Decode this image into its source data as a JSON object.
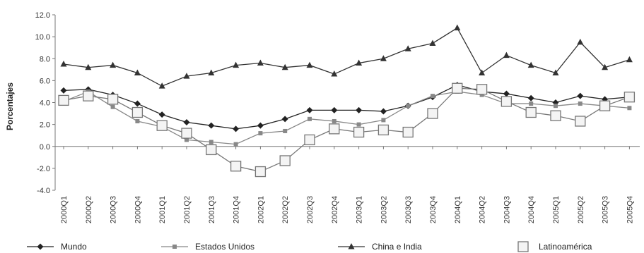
{
  "chart_data": {
    "type": "line",
    "ylabel": "Porcentajes",
    "ylim": [
      -4.0,
      12.0
    ],
    "yticks": [
      "12.0",
      "10.0",
      "8.0",
      "6.0",
      "4.0",
      "2.0",
      "0.0",
      "-2.0",
      "-4.0"
    ],
    "ytick_values": [
      12,
      10,
      8,
      6,
      4,
      2,
      0,
      -2,
      -4
    ],
    "categories": [
      "2000Q1",
      "2000Q2",
      "2000Q3",
      "2000Q4",
      "2001Q1",
      "2001Q2",
      "2001Q3",
      "2001Q4",
      "2002Q1",
      "2002Q2",
      "2002Q3",
      "2002Q4",
      "2003Q1",
      "2003Q2",
      "2003Q3",
      "2003Q4",
      "2004Q1",
      "2004Q2",
      "2004Q3",
      "2004Q4",
      "2005Q1",
      "2005Q2",
      "2005Q3",
      "2005Q4"
    ],
    "grid": false,
    "legend_position": "bottom",
    "series": [
      {
        "name": "Mundo",
        "marker": "diamond",
        "color": "#222222",
        "values": [
          5.1,
          5.2,
          4.7,
          3.9,
          2.9,
          2.2,
          1.9,
          1.6,
          1.9,
          2.5,
          3.3,
          3.3,
          3.3,
          3.2,
          3.7,
          4.5,
          5.6,
          5.0,
          4.8,
          4.4,
          4.0,
          4.6,
          4.3,
          4.5
        ]
      },
      {
        "name": "Estados Unidos",
        "marker": "square-small",
        "color": "#888888",
        "values": [
          4.1,
          5.0,
          3.6,
          2.3,
          1.8,
          0.6,
          0.4,
          0.2,
          1.2,
          1.4,
          2.5,
          2.3,
          2.0,
          2.4,
          3.7,
          4.6,
          5.0,
          4.7,
          3.9,
          3.9,
          3.7,
          3.9,
          3.7,
          3.5
        ]
      },
      {
        "name": "China e India",
        "marker": "triangle",
        "color": "#333333",
        "values": [
          7.5,
          7.2,
          7.4,
          6.7,
          5.5,
          6.4,
          6.7,
          7.4,
          7.6,
          7.2,
          7.4,
          6.6,
          7.6,
          8.0,
          8.9,
          9.4,
          10.8,
          6.7,
          8.3,
          7.4,
          6.7,
          9.5,
          7.2,
          7.9
        ]
      },
      {
        "name": "Latinoamérica",
        "marker": "open-square",
        "color": "#777777",
        "values": [
          4.2,
          4.6,
          4.3,
          3.1,
          1.9,
          1.2,
          -0.3,
          -1.8,
          -2.3,
          -1.3,
          0.6,
          1.6,
          1.3,
          1.5,
          1.3,
          3.0,
          5.3,
          5.2,
          4.1,
          3.1,
          2.8,
          2.3,
          3.7,
          4.5
        ]
      }
    ]
  }
}
